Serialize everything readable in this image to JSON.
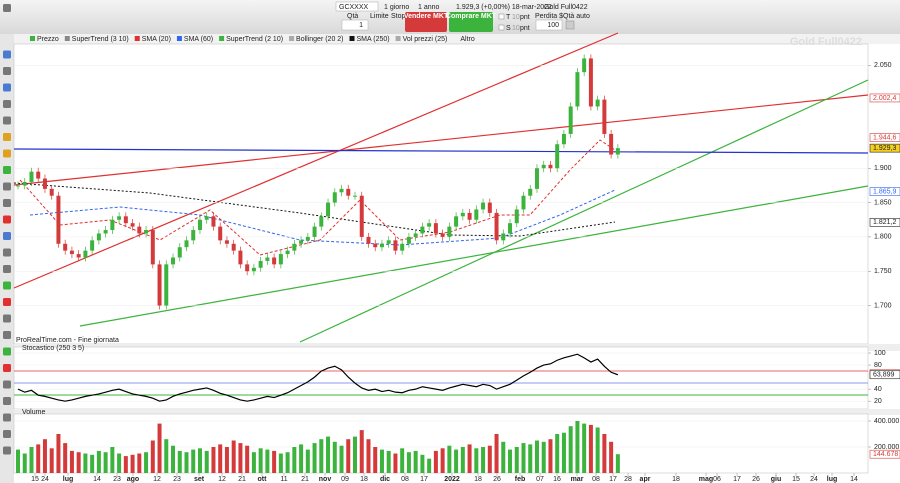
{
  "toolbar": {
    "instrument": "GCXXXX",
    "period": "1 giorno",
    "range": "1 anno",
    "quote": "1.929,3 (+0,00%) 18-mar-2022",
    "contract": "Gold Full0422",
    "qty_label": "Qtà",
    "qty": "1",
    "limit": "Limite",
    "stop": "Stop",
    "sell": "Vendere MKT",
    "buy": "Comprare MKT",
    "t": "T",
    "s": "S",
    "t_pts": "10",
    "s_pts": "10",
    "pnt1": "pnt",
    "pnt2": "pnt",
    "loss": "Perdita $",
    "auto_qty": "Qtà auto",
    "auto_value": "100"
  },
  "indicators": [
    "Prezzo",
    "SuperTrend (3 10)",
    "SMA (20)",
    "SMA (60)",
    "SuperTrend (2 10)",
    "Bollinger (20 2)",
    "SMA (250)",
    "Vol prezzi (25)",
    "Altro"
  ],
  "watermark": "Gold Full0422",
  "source": "ProRealTime.com - Fine giornata",
  "time_axis": {
    "labels": [
      "15",
      "24",
      "lug",
      "14",
      "23",
      "ago",
      "12",
      "23",
      "set",
      "12",
      "21",
      "ott",
      "11",
      "21",
      "nov",
      "09",
      "18",
      "dic",
      "08",
      "17",
      "2022",
      "18",
      "26",
      "feb",
      "07",
      "16",
      "mar",
      "08",
      "17",
      "28",
      "apr",
      "18",
      "mag",
      "06",
      "17",
      "26",
      "giu",
      "15",
      "24",
      "lug",
      "14"
    ]
  },
  "chart_data": [
    {
      "type": "candlestick",
      "close": [
        1875,
        1880,
        1895,
        1885,
        1870,
        1860,
        1790,
        1780,
        1775,
        1770,
        1780,
        1795,
        1805,
        1810,
        1825,
        1830,
        1820,
        1815,
        1805,
        1810,
        1760,
        1700,
        1760,
        1770,
        1785,
        1795,
        1810,
        1825,
        1830,
        1815,
        1795,
        1790,
        1780,
        1760,
        1750,
        1755,
        1765,
        1770,
        1760,
        1775,
        1780,
        1790,
        1795,
        1800,
        1815,
        1830,
        1850,
        1865,
        1870,
        1860,
        1860,
        1800,
        1790,
        1785,
        1790,
        1795,
        1780,
        1790,
        1800,
        1805,
        1815,
        1820,
        1805,
        1800,
        1815,
        1830,
        1835,
        1825,
        1840,
        1850,
        1835,
        1795,
        1805,
        1820,
        1840,
        1860,
        1870,
        1900,
        1905,
        1900,
        1935,
        1950,
        1990,
        2040,
        2060,
        1990,
        2000,
        1950,
        1920,
        1929.3
      ],
      "color_up": "#3cb33c",
      "color_down": "#d43a3a",
      "ylim": [
        1644,
        2081
      ],
      "yticks": [
        {
          "value": 2050,
          "label": "2.050"
        },
        {
          "value": 1900,
          "label": "1.900"
        },
        {
          "value": 1850,
          "label": "1.850"
        },
        {
          "value": 1800,
          "label": "1.800"
        },
        {
          "value": 1750,
          "label": "1.750"
        },
        {
          "value": 1700,
          "label": "1.700"
        }
      ],
      "price_labels": [
        {
          "value": 2002.4,
          "label": "2.002,4"
        },
        {
          "value": 1944.6,
          "label": "1.944,6"
        },
        {
          "value": 1929.3,
          "label": "1.929,3"
        },
        {
          "value": 1865.9,
          "label": "1.865,9"
        },
        {
          "value": 1821.2,
          "label": "1.821,2"
        }
      ]
    },
    {
      "type": "line",
      "title": "Stocastico (250 3 5)",
      "color": "#000000",
      "values": [
        40,
        35,
        38,
        30,
        28,
        25,
        22,
        20,
        22,
        25,
        28,
        30,
        32,
        35,
        38,
        40,
        36,
        32,
        30,
        28,
        25,
        20,
        22,
        28,
        32,
        35,
        38,
        40,
        42,
        38,
        33,
        30,
        26,
        22,
        20,
        22,
        25,
        28,
        26,
        30,
        34,
        40,
        46,
        52,
        60,
        70,
        75,
        78,
        72,
        60,
        50,
        42,
        38,
        40,
        36,
        38,
        35,
        34,
        38,
        40,
        44,
        42,
        40,
        38,
        42,
        45,
        48,
        46,
        44,
        48,
        46,
        40,
        44,
        48,
        55,
        62,
        68,
        75,
        80,
        82,
        88,
        92,
        95,
        98,
        92,
        85,
        90,
        78,
        68,
        63.899
      ],
      "ylim": [
        7,
        110
      ],
      "yticks": [
        100,
        80,
        40,
        20
      ],
      "price_labels": [
        {
          "value": 65.536,
          "label": "65,536"
        },
        {
          "value": 63.899,
          "label": "63,899"
        }
      ]
    },
    {
      "type": "bar",
      "title": "Volume",
      "values": [
        180000,
        150000,
        200000,
        220000,
        260000,
        190000,
        300000,
        230000,
        170000,
        160000,
        150000,
        140000,
        170000,
        160000,
        200000,
        150000,
        130000,
        140000,
        150000,
        160000,
        250000,
        380000,
        260000,
        210000,
        170000,
        160000,
        180000,
        190000,
        170000,
        200000,
        220000,
        200000,
        250000,
        230000,
        210000,
        160000,
        190000,
        180000,
        170000,
        150000,
        160000,
        200000,
        220000,
        180000,
        230000,
        260000,
        280000,
        240000,
        210000,
        260000,
        280000,
        330000,
        260000,
        200000,
        180000,
        170000,
        150000,
        190000,
        160000,
        170000,
        140000,
        110000,
        170000,
        190000,
        210000,
        180000,
        200000,
        220000,
        190000,
        200000,
        210000,
        300000,
        240000,
        180000,
        200000,
        230000,
        220000,
        250000,
        240000,
        260000,
        300000,
        310000,
        360000,
        400000,
        380000,
        370000,
        350000,
        300000,
        240000,
        144678
      ],
      "ylim": [
        0,
        450000
      ],
      "yticks": [
        {
          "value": 400000,
          "label": "400.000"
        },
        {
          "value": 200000,
          "label": "200.000"
        }
      ],
      "price_labels": [
        {
          "value": 144678,
          "label": "144.678"
        }
      ]
    }
  ]
}
